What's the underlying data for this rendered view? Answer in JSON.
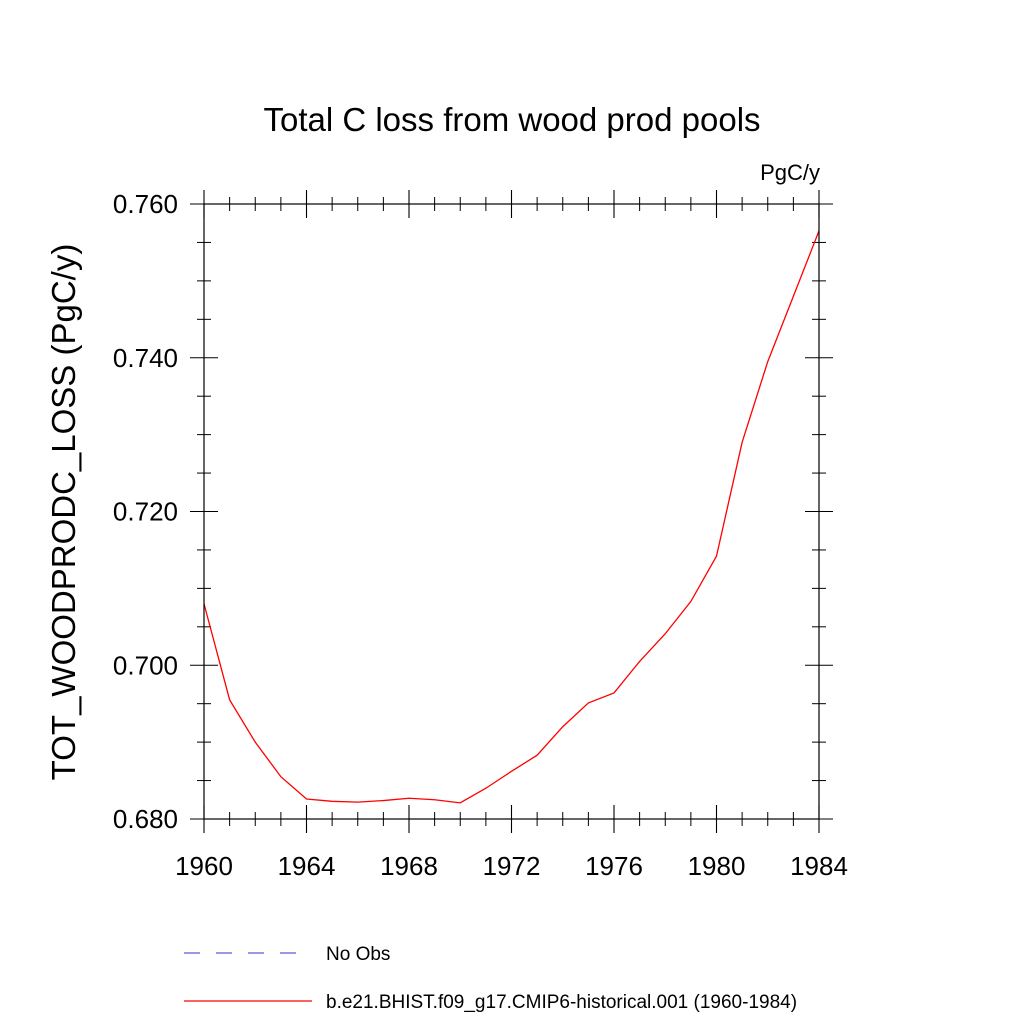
{
  "chart_data": {
    "type": "line",
    "title": "Total C loss from wood prod pools",
    "units": "PgC/y",
    "xlabel": "",
    "ylabel": "TOT_WOODPRODC_LOSS  (PgC/y)",
    "xlim": [
      1960,
      1984
    ],
    "ylim": [
      0.68,
      0.76
    ],
    "x_ticks": [
      1960,
      1964,
      1968,
      1972,
      1976,
      1980,
      1984
    ],
    "y_ticks": [
      0.68,
      0.7,
      0.72,
      0.74,
      0.76
    ],
    "y_tick_labels": [
      "0.680",
      "0.700",
      "0.720",
      "0.740",
      "0.760"
    ],
    "grid": false,
    "legend_placement": "bottom",
    "series": [
      {
        "name": "No Obs",
        "color": "#5a5adc",
        "dash": "dashed",
        "x": [],
        "values": []
      },
      {
        "name": "b.e21.BHIST.f09_g17.CMIP6-historical.001 (1960-1984)",
        "color": "#ff0000",
        "dash": "solid",
        "x": [
          1960,
          1961,
          1962,
          1963,
          1964,
          1965,
          1966,
          1967,
          1968,
          1969,
          1970,
          1971,
          1972,
          1973,
          1974,
          1975,
          1976,
          1977,
          1978,
          1979,
          1980,
          1981,
          1982,
          1983,
          1984
        ],
        "values": [
          0.708,
          0.6955,
          0.69,
          0.6855,
          0.6826,
          0.6823,
          0.6822,
          0.6824,
          0.6827,
          0.6825,
          0.6821,
          0.684,
          0.6862,
          0.6883,
          0.692,
          0.6951,
          0.6964,
          0.7005,
          0.7041,
          0.7083,
          0.7142,
          0.729,
          0.7395,
          0.748,
          0.7565
        ]
      }
    ]
  }
}
